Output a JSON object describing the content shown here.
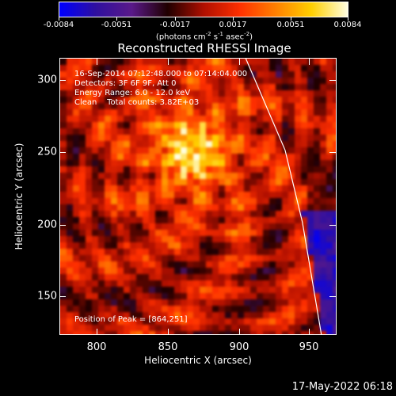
{
  "colorbar": {
    "tick_labels": [
      "-0.0084",
      "-0.0051",
      "-0.0017",
      "0.0017",
      "0.0051",
      "0.0084"
    ],
    "units": "(photons cm",
    "units_full": [
      "(photons cm",
      "-2",
      " s",
      "-1",
      " asec",
      "-2",
      ")"
    ]
  },
  "title": "Reconstructed RHESSI Image",
  "axes": {
    "xlabel": "Heliocentric X (arcsec)",
    "ylabel": "Heliocentric Y (arcsec)",
    "x_ticks": [
      "800",
      "850",
      "900",
      "950"
    ],
    "y_ticks": [
      "300",
      "250",
      "200",
      "150"
    ]
  },
  "info": {
    "line1": "16-Sep-2014 07:12:48.000 to 07:14:04.000",
    "line2": "Detectors: 3F 6F 9F, Att 0",
    "line3": "Energy Range: 6.0 - 12.0 keV",
    "line4": "Clean    Total counts: 3.82E+03",
    "peak": "Position of Peak = [864,251]"
  },
  "footer": {
    "date": "17-May-2022 06:18"
  },
  "chart_data": {
    "type": "heatmap",
    "title": "Reconstructed RHESSI Image",
    "xlabel": "Heliocentric X (arcsec)",
    "ylabel": "Heliocentric Y (arcsec)",
    "xlim": [
      775,
      965
    ],
    "ylim": [
      123,
      313
    ],
    "zlim": [
      -0.0084,
      0.0084
    ],
    "peak": [
      864,
      251
    ],
    "limb": [
      [
        903,
        313
      ],
      [
        930,
        250
      ],
      [
        942,
        200
      ],
      [
        955,
        123
      ]
    ]
  },
  "colors": {
    "colormap": [
      "#0000ff",
      "#3010a0",
      "#5a1a8a",
      "#200000",
      "#b01000",
      "#ff3000",
      "#ff8000",
      "#ffd000",
      "#ffffe0"
    ]
  }
}
